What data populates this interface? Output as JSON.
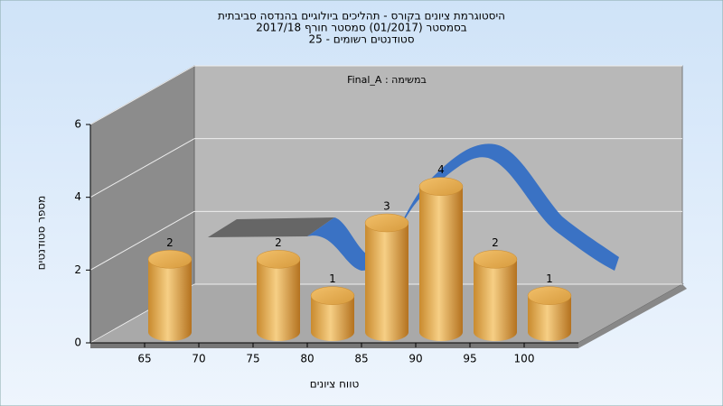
{
  "chart_data": {
    "type": "histogram",
    "title": [
      "היסטוגרמת ציונים בקורס - תהליכים ביולוגיים בהנדסה סביבתית",
      "בסמסטר  (01/2017)  סמסטר חורף 2017/18",
      "סטודנטים רשומים - 25"
    ],
    "annotation": "במשימה : Final_A",
    "xlabel": "טווח ציונים",
    "ylabel": "מספר סטודנטים",
    "bins": [
      65,
      70,
      75,
      80,
      85,
      90,
      95,
      100,
      105
    ],
    "values": [
      2,
      0,
      2,
      1,
      3,
      4,
      2,
      1
    ],
    "xlim": [
      60,
      105
    ],
    "xticks": [
      65,
      70,
      75,
      80,
      85,
      90,
      95,
      100
    ],
    "ylim": [
      0,
      6
    ],
    "yticks": [
      0,
      2,
      4,
      6
    ],
    "grid": true
  }
}
